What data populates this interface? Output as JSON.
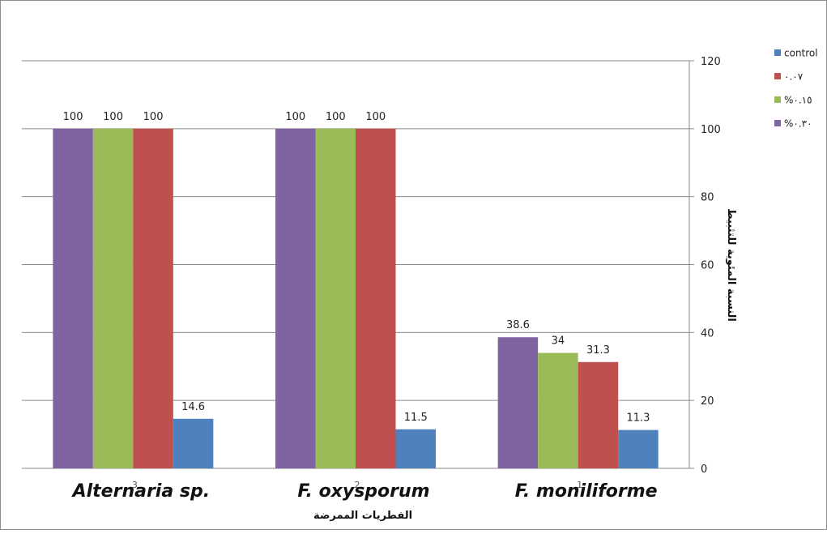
{
  "chart_data": {
    "type": "bar",
    "title": "",
    "xlabel": "الفطريات الممرضة",
    "ylabel": "النسبة المئوية للتثبيط",
    "ylim": [
      0,
      120
    ],
    "yticks": [
      0,
      20,
      40,
      60,
      80,
      100,
      120
    ],
    "y_axis_side": "right",
    "grid": true,
    "legend_position": "top-right",
    "categories": [
      "Alternaria sp.",
      "F. oxysporum",
      "F. moniliforme"
    ],
    "category_indices": [
      "3",
      "2",
      "1"
    ],
    "series": [
      {
        "name": "%٠.٣٠",
        "color": "#8064a2",
        "values": [
          100,
          100,
          38.6
        ]
      },
      {
        "name": "%٠.١٥",
        "color": "#9bbb59",
        "values": [
          100,
          100,
          34
        ]
      },
      {
        "name": "٠.٠٧",
        "color": "#c0504d",
        "values": [
          100,
          100,
          31.3
        ]
      },
      {
        "name": "control",
        "color": "#4f81bd",
        "values": [
          14.6,
          11.5,
          11.3
        ]
      }
    ],
    "legend_order": [
      "control",
      "٠.٠٧",
      "%٠.١٥",
      "%٠.٣٠"
    ]
  }
}
